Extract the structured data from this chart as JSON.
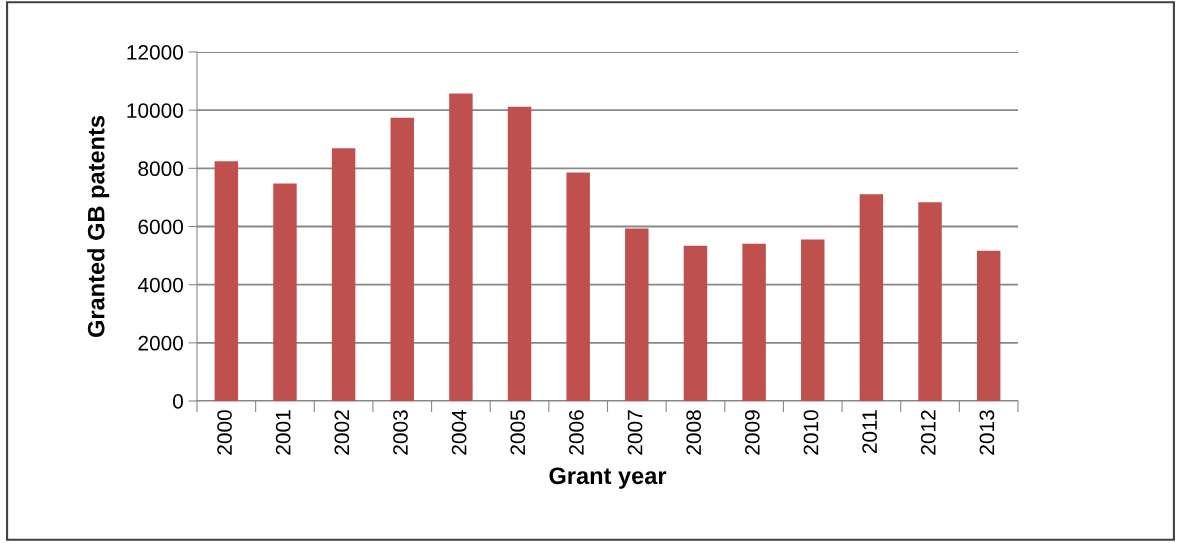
{
  "chart_data": {
    "type": "bar",
    "xlabel": "Grant year",
    "ylabel": "Granted GB patents",
    "categories": [
      "2000",
      "2001",
      "2002",
      "2003",
      "2004",
      "2005",
      "2006",
      "2007",
      "2008",
      "2009",
      "2010",
      "2011",
      "2012",
      "2013"
    ],
    "values": [
      8240,
      7480,
      8690,
      9740,
      10570,
      10120,
      7860,
      5930,
      5340,
      5410,
      5550,
      7110,
      6830,
      5170
    ],
    "color": "#c0504d",
    "ylim": [
      0,
      12000
    ],
    "yticks": [
      0,
      2000,
      4000,
      6000,
      8000,
      10000,
      12000
    ],
    "grid": "y"
  }
}
